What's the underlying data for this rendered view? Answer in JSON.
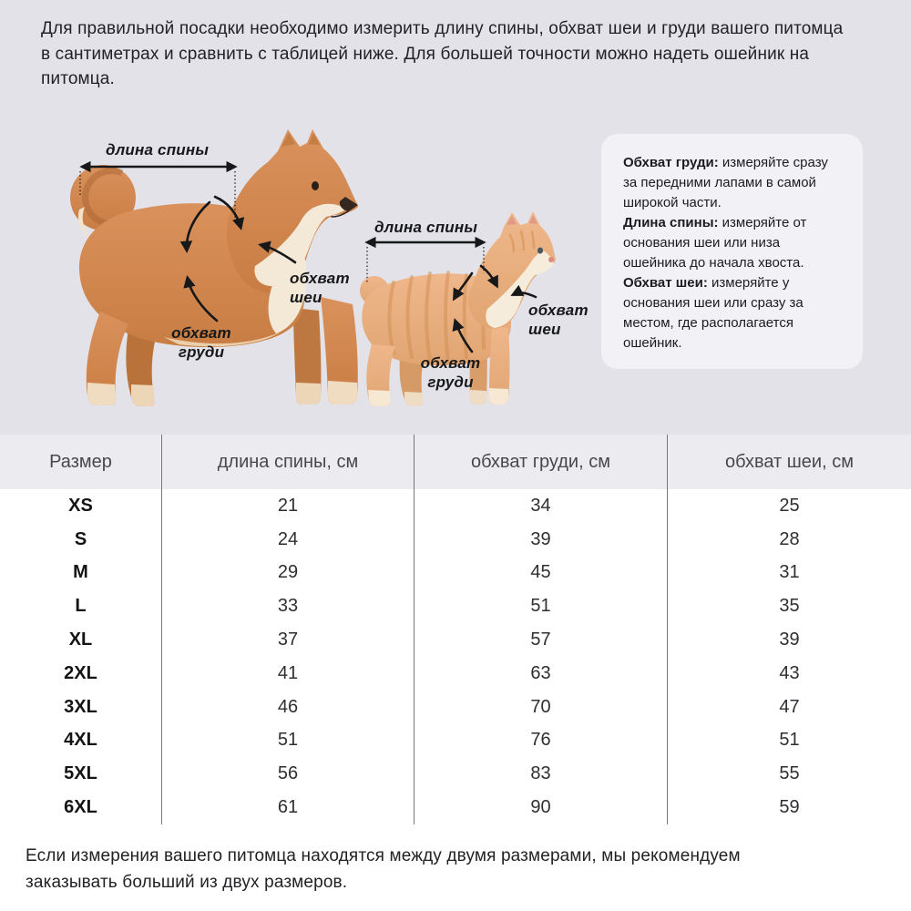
{
  "intro": "Для правильной посадки необходимо измерить длину спины, обхват шеи и груди вашего питомца в сантиметрах и сравнить с таблицей ниже. Для большей точности можно надеть ошейник на питомца.",
  "outro": "Если измерения вашего питомца находятся между двумя размерами, мы рекомендуем заказывать больший из двух размеров.",
  "diagram": {
    "dog": {
      "back_label": "длина спины",
      "neck_label": "обхват шеи",
      "chest_label": "обхват груди"
    },
    "cat": {
      "back_label": "длина спины",
      "neck_label": "обхват шеи",
      "chest_label": "обхват груди"
    }
  },
  "instructions": [
    {
      "term": "Обхват груди:",
      "text": "измеряйте сразу за передними лапами в самой широкой части."
    },
    {
      "term": "Длина спины:",
      "text": "измеряйте от основания шеи или низа ошейника до начала хвоста."
    },
    {
      "term": "Обхват шеи:",
      "text": "измеряйте у основания шеи или сразу за местом, где располагается ошейник."
    }
  ],
  "table": {
    "headers": [
      "Размер",
      "длина спины, см",
      "обхват груди, см",
      "обхват шеи, см"
    ],
    "rows": [
      [
        "XS",
        "21",
        "34",
        "25"
      ],
      [
        "S",
        "24",
        "39",
        "28"
      ],
      [
        "M",
        "29",
        "45",
        "31"
      ],
      [
        "L",
        "33",
        "51",
        "35"
      ],
      [
        "XL",
        "37",
        "57",
        "39"
      ],
      [
        "2XL",
        "41",
        "63",
        "43"
      ],
      [
        "3XL",
        "46",
        "70",
        "47"
      ],
      [
        "4XL",
        "51",
        "76",
        "51"
      ],
      [
        "5XL",
        "56",
        "83",
        "55"
      ],
      [
        "6XL",
        "61",
        "90",
        "59"
      ]
    ]
  },
  "colors": {
    "hero_bg": "#e2e2e8",
    "table_header_bg": "#ecebf0",
    "card_bg": "#f2f1f6",
    "divider": "#77777c",
    "text": "#1d1d1f",
    "annotation": "#17181a",
    "dog_fur": "#d28549",
    "cat_fur": "#eab184"
  }
}
